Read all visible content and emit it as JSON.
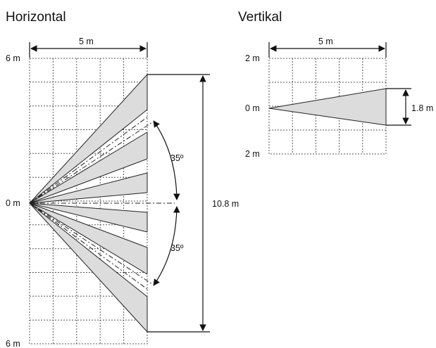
{
  "horizontal": {
    "title": "Horizontal",
    "width_label": "5 m",
    "top_label": "6 m",
    "mid_label": "0 m",
    "bottom_label": "6 m",
    "height_label": "10.8 m",
    "angle_top_label": "35º",
    "angle_bottom_label": "35º"
  },
  "vertical": {
    "title": "Vertikal",
    "width_label": "5 m",
    "top_label": "2 m",
    "mid_label": "0 m",
    "bottom_label": "2 m",
    "height_label": "1.8 m"
  }
}
